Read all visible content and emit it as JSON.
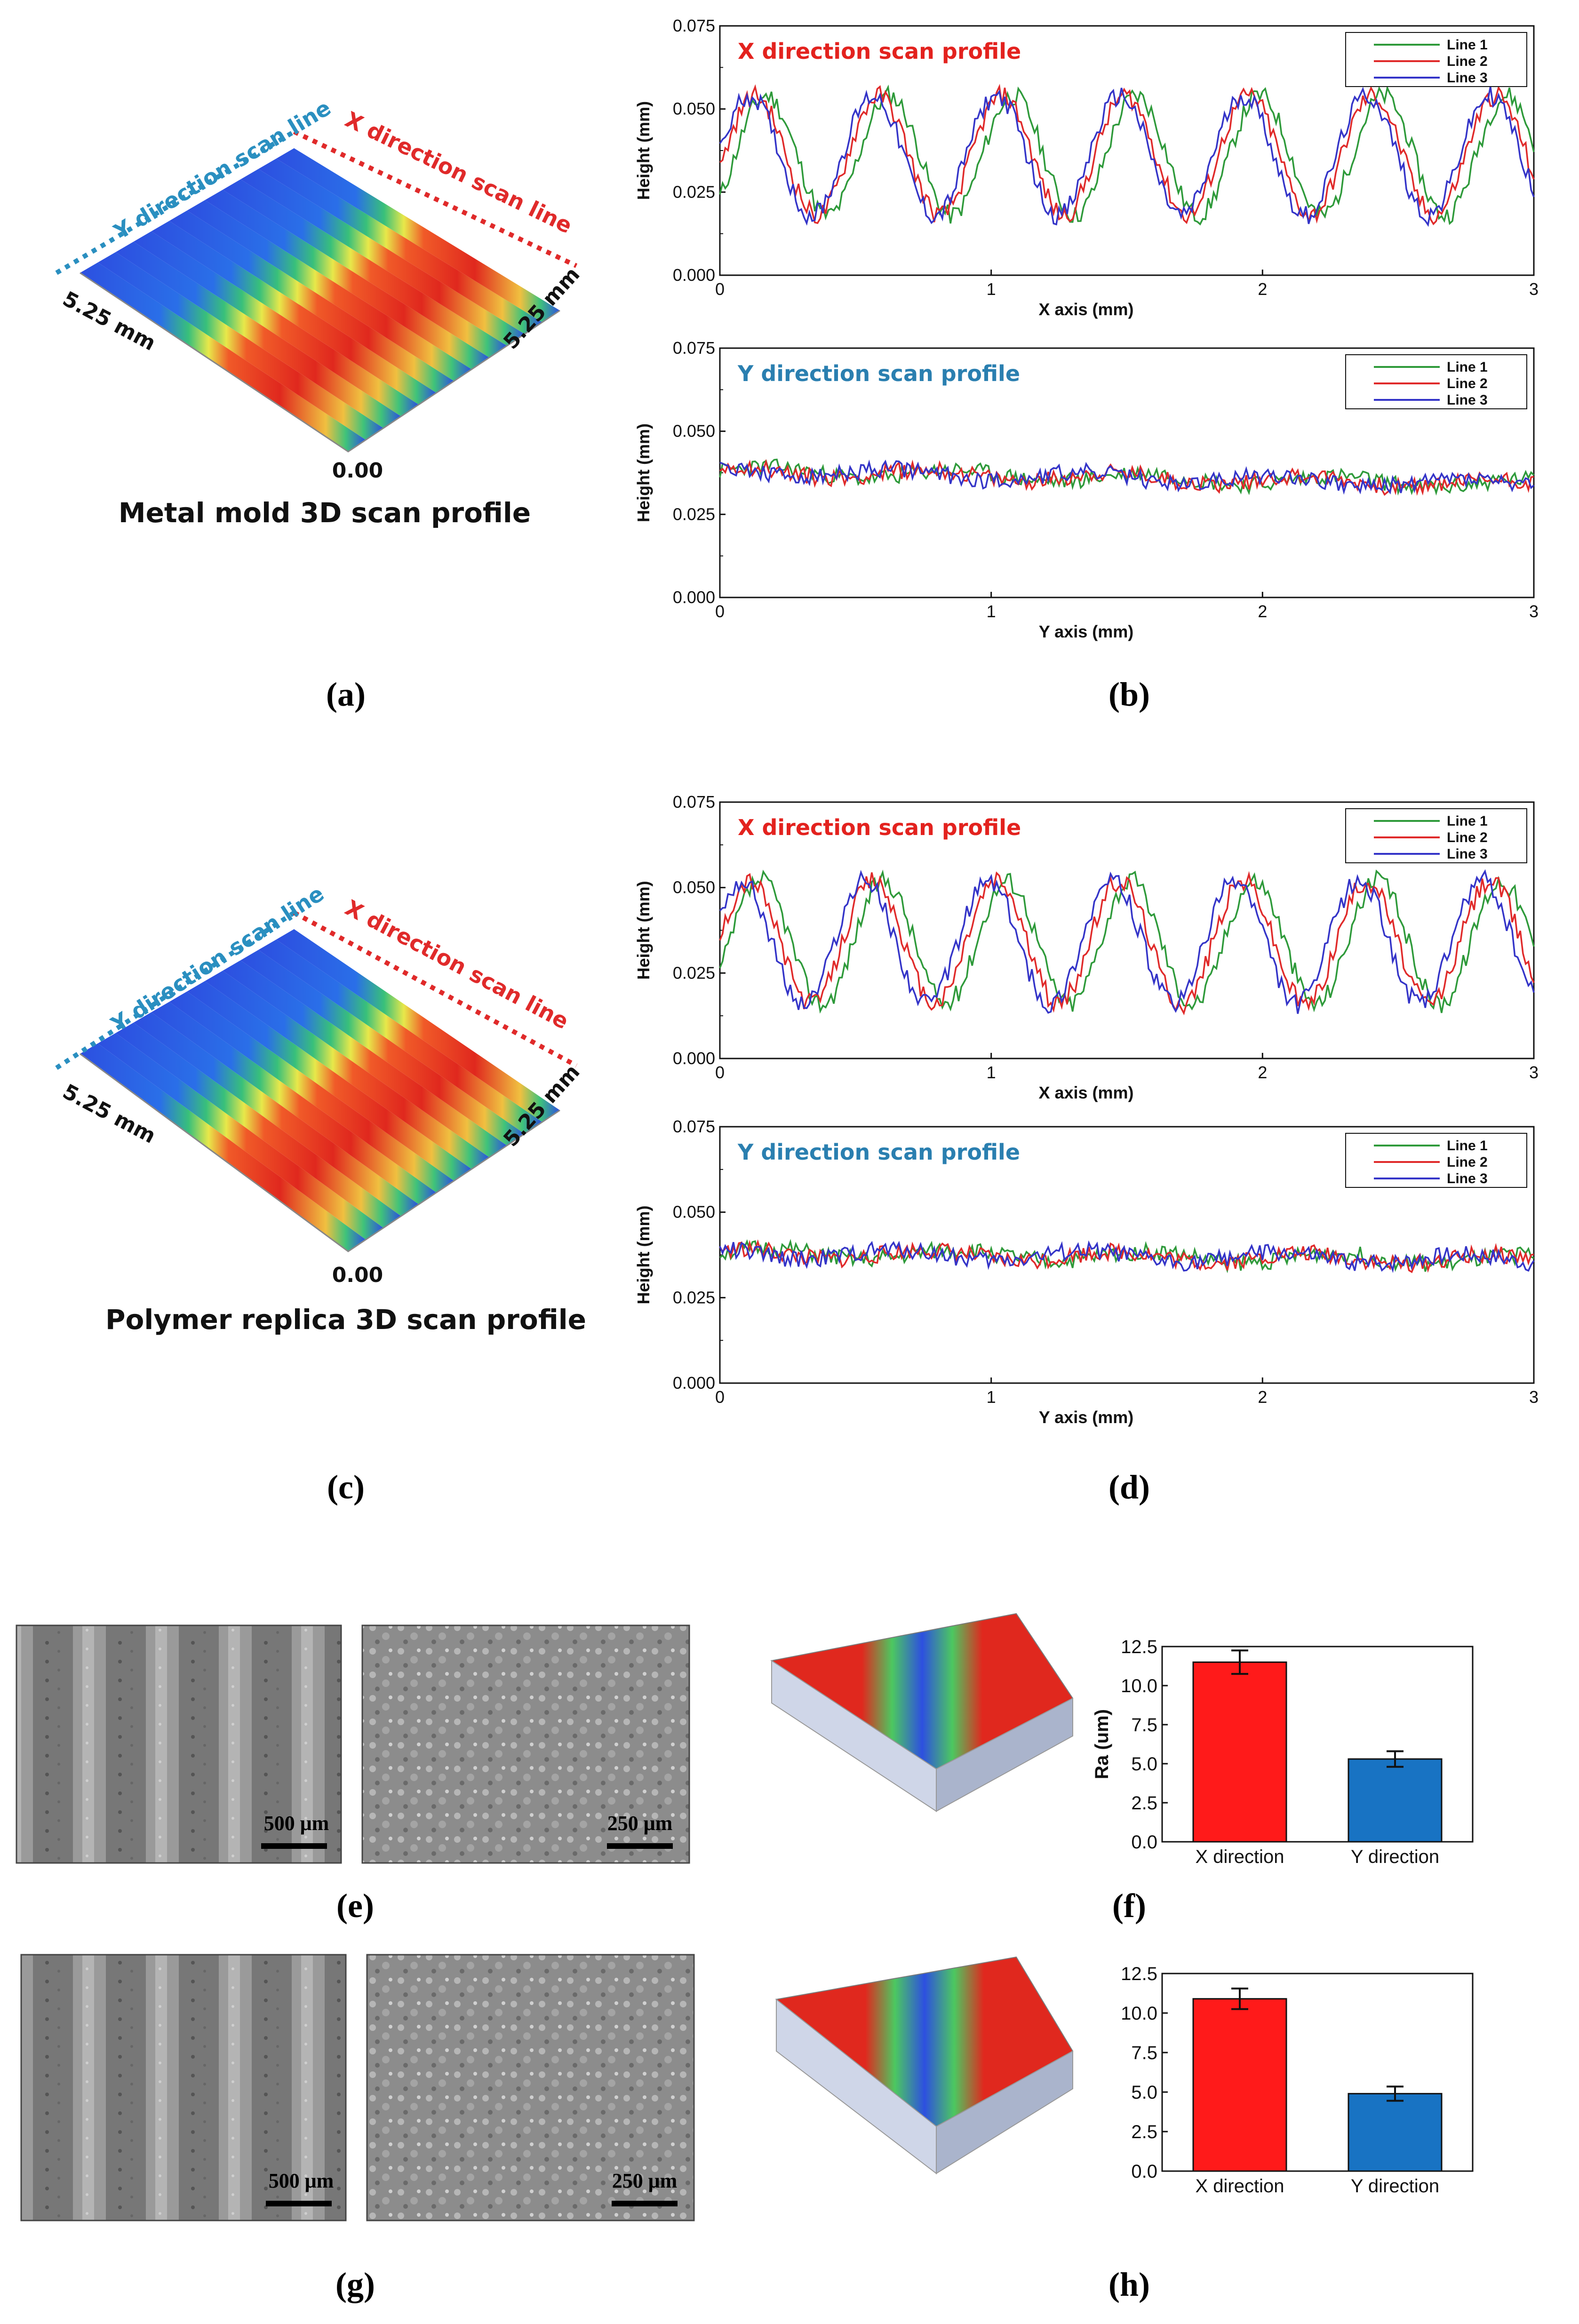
{
  "panel_labels": {
    "a": "(a)",
    "b": "(b)",
    "c": "(c)",
    "d": "(d)",
    "e": "(e)",
    "f": "(f)",
    "g": "(g)",
    "h": "(h)"
  },
  "surface_3d": [
    {
      "caption": "Metal mold 3D scan profile",
      "y_scan_label": "Y direction scan line",
      "x_scan_label": "X direction scan line",
      "dim_left": "5.25 mm",
      "dim_right": "5.25 mm",
      "origin": "0.00"
    },
    {
      "caption": "Polymer replica 3D scan profile",
      "y_scan_label": "Y direction scan line",
      "x_scan_label": "X direction scan line",
      "dim_left": "5.25 mm",
      "dim_right": "5.25 mm",
      "origin": "0.00"
    }
  ],
  "sem": {
    "mold_scale_low": "500 μm",
    "mold_scale_high": "250 μm",
    "replica_scale_low": "500 μm",
    "replica_scale_high": "250 μm"
  },
  "colors": {
    "line1": "#2e9a3a",
    "line2": "#e02a2a",
    "line3": "#3434c8",
    "x_title": "#e3221e",
    "y_title": "#2a7fb0",
    "bar_x": "#ff1a1a",
    "bar_y": "#1873c3"
  },
  "chart_data": [
    {
      "id": "b-top",
      "type": "line",
      "title": "X direction scan profile",
      "xlabel": "X axis (mm)",
      "ylabel": "Height (mm)",
      "xlim": [
        0,
        3
      ],
      "ylim": [
        0,
        0.075
      ],
      "xticks": [
        "0",
        "1",
        "2",
        "3"
      ],
      "yticks": [
        "0.000",
        "0.025",
        "0.050",
        "0.075"
      ],
      "legend": [
        "Line 1",
        "Line 2",
        "Line 3"
      ],
      "wave": {
        "period": 0.455,
        "low": 0.018,
        "high": 0.054
      },
      "series": [
        {
          "name": "Line 1",
          "phase": 0.17
        },
        {
          "name": "Line 2",
          "phase": 0.13
        },
        {
          "name": "Line 3",
          "phase": 0.11
        }
      ]
    },
    {
      "id": "b-bottom",
      "type": "line",
      "title": "Y direction scan profile",
      "xlabel": "Y axis (mm)",
      "ylabel": "Height (mm)",
      "xlim": [
        0,
        3
      ],
      "ylim": [
        0,
        0.075
      ],
      "xticks": [
        "0",
        "1",
        "2",
        "3"
      ],
      "yticks": [
        "0.000",
        "0.025",
        "0.050",
        "0.075"
      ],
      "legend": [
        "Line 1",
        "Line 2",
        "Line 3"
      ],
      "flat": {
        "start": 0.038,
        "end": 0.034
      },
      "series": [
        {
          "name": "Line 1"
        },
        {
          "name": "Line 2"
        },
        {
          "name": "Line 3"
        }
      ]
    },
    {
      "id": "d-top",
      "type": "line",
      "title": "X direction scan profile",
      "xlabel": "X axis (mm)",
      "ylabel": "Height (mm)",
      "xlim": [
        0,
        3
      ],
      "ylim": [
        0,
        0.075
      ],
      "xticks": [
        "0",
        "1",
        "2",
        "3"
      ],
      "yticks": [
        "0.000",
        "0.025",
        "0.050",
        "0.075"
      ],
      "legend": [
        "Line 1",
        "Line 2",
        "Line 3"
      ],
      "wave": {
        "period": 0.455,
        "low": 0.016,
        "high": 0.052
      },
      "series": [
        {
          "name": "Line 1",
          "phase": 0.15
        },
        {
          "name": "Line 2",
          "phase": 0.11
        },
        {
          "name": "Line 3",
          "phase": 0.08
        }
      ]
    },
    {
      "id": "d-bottom",
      "type": "line",
      "title": "Y direction scan profile",
      "xlabel": "Y axis (mm)",
      "ylabel": "Height (mm)",
      "xlim": [
        0,
        3
      ],
      "ylim": [
        0,
        0.075
      ],
      "xticks": [
        "0",
        "1",
        "2",
        "3"
      ],
      "yticks": [
        "0.000",
        "0.025",
        "0.050",
        "0.075"
      ],
      "legend": [
        "Line 1",
        "Line 2",
        "Line 3"
      ],
      "flat": {
        "start": 0.038,
        "end": 0.036
      },
      "series": [
        {
          "name": "Line 1"
        },
        {
          "name": "Line 2"
        },
        {
          "name": "Line 3"
        }
      ]
    },
    {
      "id": "f",
      "type": "bar",
      "ylabel": "Ra (um)",
      "categories": [
        "X direction",
        "Y direction"
      ],
      "values": [
        11.5,
        5.3
      ],
      "errors": [
        0.75,
        0.5
      ],
      "ylim": [
        0,
        12.5
      ],
      "yticks": [
        "0.0",
        "2.5",
        "5.0",
        "7.5",
        "10.0",
        "12.5"
      ]
    },
    {
      "id": "h",
      "type": "bar",
      "ylabel": "",
      "categories": [
        "X direction",
        "Y direction"
      ],
      "values": [
        10.9,
        4.9
      ],
      "errors": [
        0.65,
        0.45
      ],
      "ylim": [
        0,
        12.5
      ],
      "yticks": [
        "0.0",
        "2.5",
        "5.0",
        "7.5",
        "10.0",
        "12.5"
      ]
    }
  ]
}
